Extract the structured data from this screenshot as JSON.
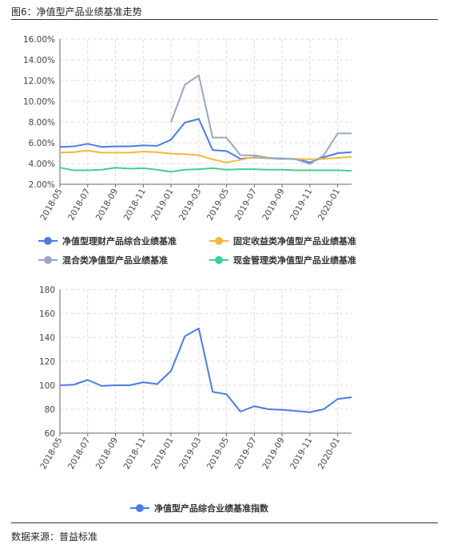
{
  "figure_title": "图6：净值型产品业绩基准走势",
  "source_note": "数据来源：普益标准",
  "chart_data": [
    {
      "type": "line",
      "ylim": [
        2,
        16
      ],
      "yticks": [
        "2.00%",
        "4.00%",
        "6.00%",
        "8.00%",
        "10.00%",
        "12.00%",
        "14.00%",
        "16.00%"
      ],
      "ytick_values": [
        2,
        4,
        6,
        8,
        10,
        12,
        14,
        16
      ],
      "x": [
        "2018-05",
        "2018-06",
        "2018-07",
        "2018-08",
        "2018-09",
        "2018-10",
        "2018-11",
        "2018-12",
        "2019-01",
        "2019-02",
        "2019-03",
        "2019-04",
        "2019-05",
        "2019-06",
        "2019-07",
        "2019-08",
        "2019-09",
        "2019-10",
        "2019-11",
        "2019-12",
        "2020-01",
        "2020-02"
      ],
      "xticks": [
        "2018-05",
        "2018-07",
        "2018-09",
        "2018-11",
        "2019-01",
        "2019-03",
        "2019-05",
        "2019-07",
        "2019-09",
        "2019-11",
        "2020-01"
      ],
      "grid": true,
      "legend_position": "bottom",
      "series": [
        {
          "name": "净值型理财产品综合业绩基准",
          "color": "#4b7be5",
          "values": [
            5.6,
            5.65,
            5.9,
            5.6,
            5.65,
            5.65,
            5.75,
            5.7,
            6.3,
            7.95,
            8.3,
            5.3,
            5.2,
            4.45,
            4.6,
            4.5,
            4.45,
            4.45,
            4.1,
            4.6,
            5.0,
            5.1
          ]
        },
        {
          "name": "固定收益类净值型产品业绩基准",
          "color": "#f2b83a",
          "values": [
            5.05,
            5.1,
            5.25,
            5.05,
            5.05,
            5.05,
            5.15,
            5.1,
            4.95,
            4.9,
            4.8,
            4.4,
            4.1,
            4.35,
            4.65,
            4.5,
            4.5,
            4.45,
            4.4,
            4.45,
            4.55,
            4.65
          ]
        },
        {
          "name": "混合类净值型产品业绩基准",
          "color": "#98a7c3",
          "values": [
            null,
            null,
            null,
            null,
            null,
            null,
            null,
            null,
            8.0,
            11.6,
            12.5,
            6.5,
            6.5,
            4.8,
            4.8,
            4.55,
            4.5,
            4.4,
            3.95,
            4.8,
            6.9,
            6.9
          ]
        },
        {
          "name": "现金管理类净值型产品业绩基准",
          "color": "#3ecf9a",
          "values": [
            3.6,
            3.35,
            3.35,
            3.4,
            3.6,
            3.5,
            3.55,
            3.4,
            3.2,
            3.4,
            3.45,
            3.55,
            3.4,
            3.45,
            3.45,
            3.4,
            3.4,
            3.35,
            3.35,
            3.35,
            3.35,
            3.3
          ]
        }
      ]
    },
    {
      "type": "line",
      "ylim": [
        60,
        180
      ],
      "yticks": [
        "60",
        "80",
        "100",
        "120",
        "140",
        "160",
        "180"
      ],
      "ytick_values": [
        60,
        80,
        100,
        120,
        140,
        160,
        180
      ],
      "x": [
        "2018-05",
        "2018-06",
        "2018-07",
        "2018-08",
        "2018-09",
        "2018-10",
        "2018-11",
        "2018-12",
        "2019-01",
        "2019-02",
        "2019-03",
        "2019-04",
        "2019-05",
        "2019-06",
        "2019-07",
        "2019-08",
        "2019-09",
        "2019-10",
        "2019-11",
        "2019-12",
        "2020-01",
        "2020-02"
      ],
      "xticks": [
        "2018-05",
        "2018-07",
        "2018-09",
        "2018-11",
        "2019-01",
        "2019-03",
        "2019-05",
        "2019-07",
        "2019-09",
        "2019-11",
        "2020-01"
      ],
      "grid": true,
      "legend_position": "bottom",
      "series": [
        {
          "name": "净值型产品综合业绩基准指数",
          "color": "#4b7be5",
          "values": [
            100,
            100.5,
            104.5,
            99.5,
            100,
            100,
            102.5,
            101,
            112,
            141,
            147.5,
            94.5,
            92.5,
            78,
            82.5,
            80,
            79.5,
            78.5,
            77.5,
            80,
            88.5,
            90
          ]
        }
      ]
    }
  ]
}
